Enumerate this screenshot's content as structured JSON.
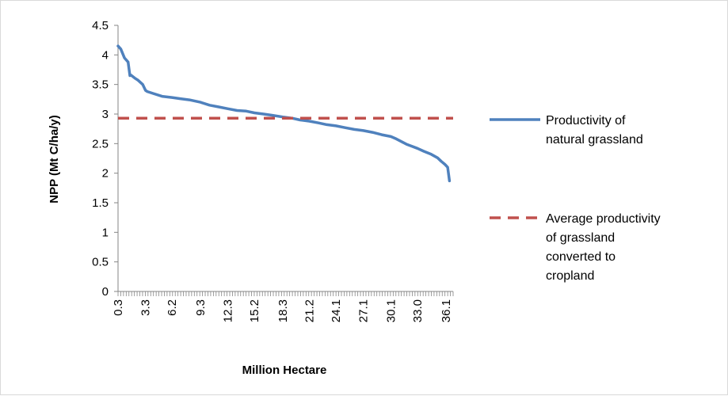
{
  "chart_data": {
    "type": "line",
    "title": "",
    "xlabel": "Million Hectare",
    "ylabel": "NPP (Mt C/ha/y)",
    "ylim": [
      0,
      4.5
    ],
    "yticks": [
      "0",
      "0.5",
      "1",
      "1.5",
      "2",
      "2.5",
      "3",
      "3.5",
      "4",
      "4.5"
    ],
    "xlim": [
      0.3,
      36.9
    ],
    "xtick_labels": [
      {
        "x": 0.3,
        "label": "0.3"
      },
      {
        "x": 3.3,
        "label": "3.3"
      },
      {
        "x": 6.2,
        "label": "6.2"
      },
      {
        "x": 9.3,
        "label": "9.3"
      },
      {
        "x": 12.3,
        "label": "12.3"
      },
      {
        "x": 15.2,
        "label": "15.2"
      },
      {
        "x": 18.3,
        "label": "18.3"
      },
      {
        "x": 21.2,
        "label": "21.2"
      },
      {
        "x": 24.1,
        "label": "24.1"
      },
      {
        "x": 27.1,
        "label": "27.1"
      },
      {
        "x": 30.1,
        "label": "30.1"
      },
      {
        "x": 33.0,
        "label": "33.0"
      },
      {
        "x": 36.1,
        "label": "36.1"
      }
    ],
    "grid": false,
    "legend_position": "right",
    "series": [
      {
        "name": "Productivity of natural grassland",
        "color": "#4f81bd",
        "style": "solid",
        "x": [
          0.3,
          0.6,
          1.0,
          1.4,
          1.6,
          1.7,
          2.2,
          2.5,
          3.0,
          3.3,
          3.5,
          4.1,
          5.1,
          6.2,
          7.1,
          8.1,
          9.3,
          10.3,
          11.3,
          12.3,
          13.3,
          14.3,
          15.2,
          16.2,
          17.1,
          18.3,
          19.3,
          20.2,
          21.2,
          22.2,
          23.1,
          24.1,
          25.1,
          26.1,
          27.1,
          28.1,
          29.1,
          30.1,
          30.7,
          31.3,
          31.8,
          32.3,
          33.0,
          33.7,
          34.5,
          35.2,
          35.6,
          36.0,
          36.3,
          36.5
        ],
        "y": [
          4.15,
          4.1,
          3.95,
          3.88,
          3.65,
          3.66,
          3.6,
          3.57,
          3.5,
          3.4,
          3.38,
          3.35,
          3.3,
          3.28,
          3.26,
          3.24,
          3.2,
          3.15,
          3.12,
          3.09,
          3.06,
          3.05,
          3.02,
          3.0,
          2.98,
          2.95,
          2.93,
          2.9,
          2.88,
          2.85,
          2.82,
          2.8,
          2.77,
          2.74,
          2.72,
          2.69,
          2.65,
          2.62,
          2.58,
          2.53,
          2.49,
          2.46,
          2.42,
          2.37,
          2.32,
          2.26,
          2.2,
          2.15,
          2.1,
          1.87
        ]
      },
      {
        "name": "Average productivity of grassland converted to cropland",
        "color": "#c0504d",
        "style": "dashed",
        "x": [
          0.3,
          36.9
        ],
        "y": [
          2.93,
          2.93
        ]
      }
    ],
    "legend": [
      {
        "lines": [
          "Productivity of",
          "natural grassland"
        ]
      },
      {
        "lines": [
          "Average productivity",
          "of grassland",
          "converted to",
          "cropland"
        ]
      }
    ]
  }
}
